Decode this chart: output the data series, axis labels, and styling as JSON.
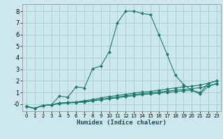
{
  "xlabel": "Humidex (Indice chaleur)",
  "bg_color": "#cce8ec",
  "grid_color": "#aacccc",
  "line_color": "#1a7a6e",
  "xlim": [
    -0.5,
    23.5
  ],
  "ylim": [
    -0.6,
    8.6
  ],
  "x_ticks": [
    0,
    1,
    2,
    3,
    4,
    5,
    6,
    7,
    8,
    9,
    10,
    11,
    12,
    13,
    14,
    15,
    16,
    17,
    18,
    19,
    20,
    21,
    22,
    23
  ],
  "y_ticks": [
    0,
    1,
    2,
    3,
    4,
    5,
    6,
    7,
    8
  ],
  "y_tick_labels": [
    "-0",
    "1",
    "2",
    "3",
    "4",
    "5",
    "6",
    "7",
    "8"
  ],
  "lines": [
    {
      "x": [
        0,
        1,
        2,
        3,
        4,
        5,
        6,
        7,
        8,
        9,
        10,
        11,
        12,
        13,
        14,
        15,
        16,
        17,
        18,
        19,
        20,
        21,
        22,
        23
      ],
      "y": [
        -0.2,
        -0.35,
        -0.1,
        -0.05,
        0.7,
        0.6,
        1.5,
        1.4,
        3.05,
        3.3,
        4.5,
        7.0,
        8.0,
        8.0,
        7.8,
        7.7,
        6.0,
        4.3,
        2.5,
        1.7,
        1.2,
        1.0,
        1.8,
        2.0
      ]
    },
    {
      "x": [
        0,
        1,
        2,
        3,
        4,
        5,
        6,
        7,
        8,
        9,
        10,
        11,
        12,
        13,
        14,
        15,
        16,
        17,
        18,
        19,
        20,
        21,
        22,
        23
      ],
      "y": [
        -0.2,
        -0.35,
        -0.1,
        -0.05,
        0.1,
        0.15,
        0.2,
        0.3,
        0.4,
        0.55,
        0.65,
        0.75,
        0.85,
        0.95,
        1.05,
        1.1,
        1.2,
        1.3,
        1.4,
        1.5,
        1.55,
        1.65,
        1.8,
        2.0
      ]
    },
    {
      "x": [
        0,
        1,
        2,
        3,
        4,
        5,
        6,
        7,
        8,
        9,
        10,
        11,
        12,
        13,
        14,
        15,
        16,
        17,
        18,
        19,
        20,
        21,
        22,
        23
      ],
      "y": [
        -0.2,
        -0.35,
        -0.12,
        -0.05,
        0.08,
        0.12,
        0.17,
        0.22,
        0.32,
        0.42,
        0.52,
        0.62,
        0.72,
        0.82,
        0.92,
        0.97,
        1.05,
        1.12,
        1.2,
        1.27,
        1.33,
        1.43,
        1.58,
        1.78
      ]
    },
    {
      "x": [
        0,
        1,
        2,
        3,
        4,
        5,
        6,
        7,
        8,
        9,
        10,
        11,
        12,
        13,
        14,
        15,
        16,
        17,
        18,
        19,
        20,
        21,
        22,
        23
      ],
      "y": [
        -0.2,
        -0.35,
        -0.12,
        -0.05,
        0.05,
        0.1,
        0.14,
        0.19,
        0.28,
        0.38,
        0.47,
        0.56,
        0.65,
        0.74,
        0.83,
        0.88,
        0.95,
        1.02,
        1.08,
        1.15,
        1.2,
        0.88,
        1.55,
        1.75
      ]
    }
  ],
  "marker": "D",
  "markersize": 2.0,
  "linewidth": 0.8
}
